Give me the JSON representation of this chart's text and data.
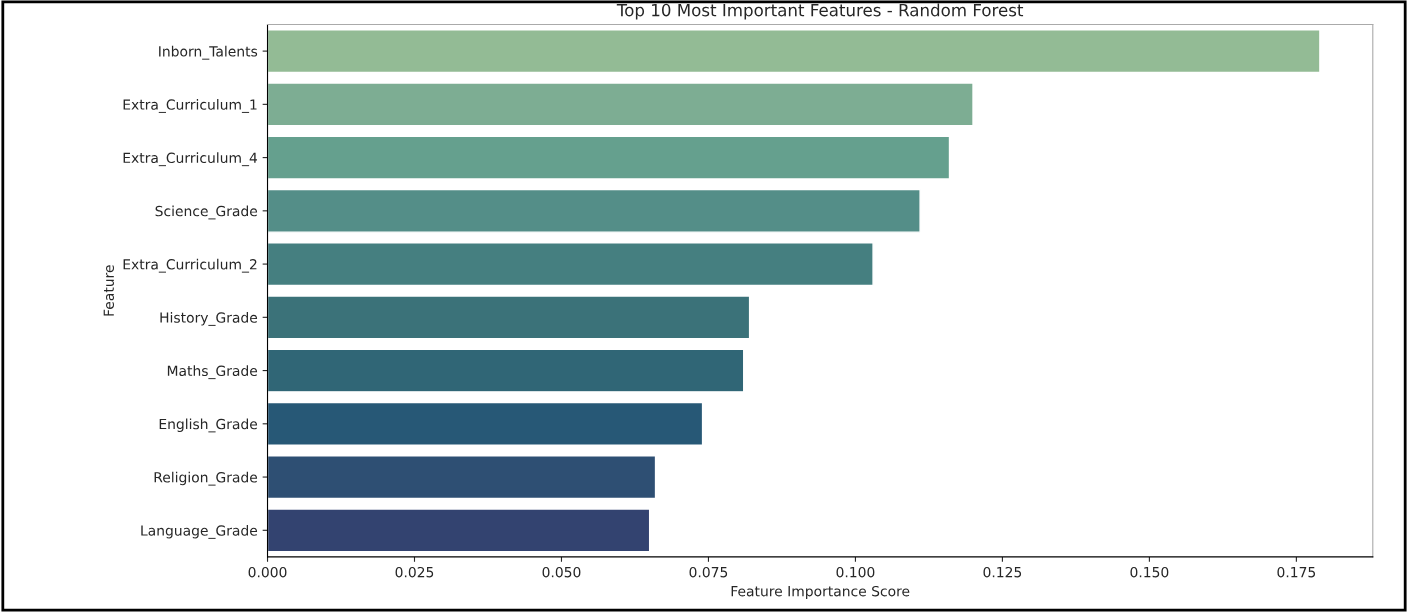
{
  "chart_data": {
    "type": "bar",
    "orientation": "horizontal",
    "title": "Top 10 Most Important Features - Random Forest",
    "xlabel": "Feature Importance Score",
    "ylabel": "Feature",
    "categories": [
      "Inborn_Talents",
      "Extra_Curriculum_1",
      "Extra_Curriculum_4",
      "Science_Grade",
      "Extra_Curriculum_2",
      "History_Grade",
      "Maths_Grade",
      "English_Grade",
      "Religion_Grade",
      "Language_Grade"
    ],
    "values": [
      0.179,
      0.12,
      0.116,
      0.111,
      0.103,
      0.082,
      0.081,
      0.074,
      0.066,
      0.065
    ],
    "colors": [
      "#93bb95",
      "#7dad93",
      "#65a08e",
      "#548e88",
      "#457f80",
      "#3b7279",
      "#306676",
      "#275876",
      "#2e4f73",
      "#334370"
    ],
    "xlim": [
      0,
      0.188
    ],
    "xticks": [
      {
        "value": 0,
        "label": "0.000"
      },
      {
        "value": 0.025,
        "label": "0.025"
      },
      {
        "value": 0.05,
        "label": "0.050"
      },
      {
        "value": 0.075,
        "label": "0.075"
      },
      {
        "value": 0.1,
        "label": "0.100"
      },
      {
        "value": 0.125,
        "label": "0.125"
      },
      {
        "value": 0.15,
        "label": "0.150"
      },
      {
        "value": 0.175,
        "label": "0.175"
      }
    ],
    "grid": false,
    "legend": false
  }
}
